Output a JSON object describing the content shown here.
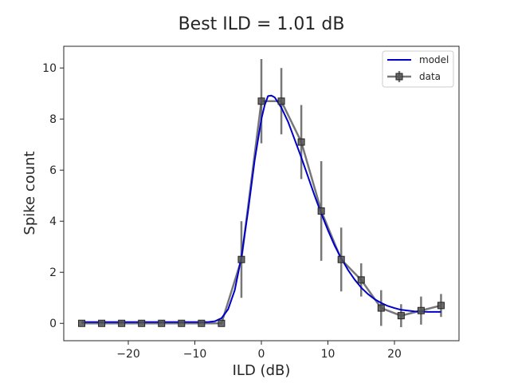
{
  "chart_data": {
    "type": "line",
    "title": "Best ILD = 1.01 dB",
    "xlabel": "ILD (dB)",
    "ylabel": "Spike count",
    "xlim": [
      -29.7,
      29.7
    ],
    "ylim": [
      -0.68,
      10.85
    ],
    "xticks": [
      -20,
      -10,
      0,
      10,
      20
    ],
    "yticks": [
      0,
      2,
      4,
      6,
      8,
      10
    ],
    "grid": false,
    "legend": {
      "position": "top-right"
    },
    "colors": {
      "model": "#0000cc",
      "data": "#555555",
      "axes": "#262626"
    },
    "series": [
      {
        "name": "data",
        "marker": "square",
        "x": [
          -27,
          -24,
          -21,
          -18,
          -15,
          -12,
          -9,
          -6,
          -3,
          0,
          3,
          6,
          9,
          12,
          15,
          18,
          21,
          24,
          27
        ],
        "y": [
          0,
          0,
          0,
          0,
          0,
          0,
          0,
          0,
          2.5,
          8.7,
          8.7,
          7.1,
          4.4,
          2.5,
          1.7,
          0.6,
          0.3,
          0.5,
          0.7
        ],
        "err": [
          0,
          0,
          0,
          0,
          0,
          0,
          0,
          0,
          1.5,
          1.65,
          1.3,
          1.45,
          1.95,
          1.25,
          0.65,
          0.7,
          0.45,
          0.55,
          0.45
        ]
      },
      {
        "name": "model",
        "x": [
          -27,
          -24,
          -21,
          -18,
          -15,
          -12,
          -9,
          -8,
          -7,
          -6,
          -5,
          -4,
          -3,
          -2,
          -1,
          0,
          0.5,
          1,
          1.5,
          2,
          3,
          4,
          5,
          6,
          7,
          8,
          9,
          10,
          11,
          12,
          13,
          14,
          15,
          16,
          17,
          18,
          19,
          20,
          21,
          22,
          23,
          24,
          25,
          26,
          27
        ],
        "y": [
          0.05,
          0.05,
          0.05,
          0.05,
          0.05,
          0.05,
          0.05,
          0.05,
          0.08,
          0.2,
          0.55,
          1.3,
          2.6,
          4.4,
          6.4,
          8.0,
          8.55,
          8.9,
          8.92,
          8.85,
          8.45,
          7.9,
          7.2,
          6.5,
          5.75,
          5.0,
          4.3,
          3.65,
          3.05,
          2.55,
          2.1,
          1.72,
          1.4,
          1.15,
          0.95,
          0.8,
          0.68,
          0.6,
          0.53,
          0.5,
          0.47,
          0.46,
          0.45,
          0.45,
          0.45
        ]
      }
    ]
  }
}
